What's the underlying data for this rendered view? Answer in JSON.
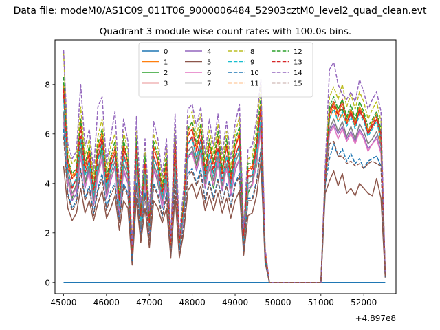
{
  "chart_data": {
    "type": "line",
    "suptitle": "Data file: modeM0/AS1C09_011T06_9000006484_52903cztM0_level2_quad_clean.evt",
    "title": "Quadrant 3 module wise count rates with 100.0s bins.",
    "xlabel": "",
    "ylabel": "",
    "x_offset_label": "+4.897e8",
    "xlim": [
      44800,
      52750
    ],
    "ylim": [
      -0.45,
      9.8
    ],
    "x_ticks": [
      45000,
      46000,
      47000,
      48000,
      49000,
      50000,
      51000,
      52000
    ],
    "y_ticks": [
      0,
      2,
      4,
      6,
      8
    ],
    "legend": {
      "placement": "top-center",
      "columns": 4
    },
    "grid": false,
    "x": [
      45000,
      45100,
      45200,
      45300,
      45400,
      45500,
      45600,
      45700,
      45800,
      45900,
      46000,
      46100,
      46200,
      46300,
      46400,
      46500,
      46600,
      46700,
      46800,
      46900,
      47000,
      47100,
      47200,
      47300,
      47400,
      47500,
      47600,
      47700,
      47800,
      47900,
      48000,
      48100,
      48200,
      48300,
      48400,
      48500,
      48600,
      48700,
      48800,
      48900,
      49000,
      49100,
      49200,
      49300,
      49400,
      49500,
      49600,
      49700,
      49800,
      49900,
      50000,
      51000,
      51100,
      51200,
      51300,
      51400,
      51500,
      51600,
      51700,
      51800,
      51900,
      52000,
      52100,
      52200,
      52300,
      52400,
      52500
    ],
    "series": [
      {
        "name": "0",
        "color": "#1f77b4",
        "dash": false,
        "values": [
          0,
          0,
          0,
          0,
          0,
          0,
          0,
          0,
          0,
          0,
          0,
          0,
          0,
          0,
          0,
          0,
          0,
          0,
          0,
          0,
          0,
          0,
          0,
          0,
          0,
          0,
          0,
          0,
          0,
          0,
          0,
          0,
          0,
          0,
          0,
          0,
          0,
          0,
          0,
          0,
          0,
          0,
          0,
          0,
          0,
          0,
          0,
          0,
          0,
          0,
          0,
          0,
          0,
          0,
          0,
          0,
          0,
          0,
          0,
          0,
          0,
          0,
          0,
          0,
          0,
          0,
          0
        ]
      },
      {
        "name": "1",
        "color": "#ff7f0e",
        "dash": false,
        "values": [
          7.9,
          4.8,
          4.2,
          4.5,
          6.6,
          4.6,
          5.3,
          3.7,
          5.4,
          6.0,
          4.0,
          5.0,
          5.3,
          3.2,
          5.6,
          4.8,
          1.3,
          5.5,
          2.7,
          4.8,
          2.4,
          5.5,
          4.9,
          3.6,
          4.9,
          1.5,
          5.7,
          1.6,
          3.2,
          6.0,
          6.2,
          5.4,
          6.2,
          4.4,
          5.6,
          4.8,
          5.8,
          4.4,
          5.5,
          4.2,
          5.4,
          6.0,
          1.9,
          4.6,
          4.6,
          5.6,
          7.2,
          1.2,
          0,
          0,
          0,
          0,
          4.0,
          6.6,
          7.1,
          6.5,
          6.8,
          6.4,
          6.9,
          6.3,
          7.0,
          6.6,
          6.0,
          6.3,
          6.6,
          5.6,
          0.3
        ]
      },
      {
        "name": "2",
        "color": "#2ca02c",
        "dash": false,
        "values": [
          8.1,
          4.1,
          3.4,
          4.0,
          5.8,
          3.9,
          4.8,
          3.1,
          4.4,
          5.6,
          3.5,
          4.2,
          4.7,
          2.9,
          4.8,
          4.3,
          1.1,
          4.8,
          2.2,
          4.1,
          2.0,
          4.7,
          4.0,
          3.1,
          4.1,
          1.3,
          4.9,
          1.5,
          2.8,
          5.1,
          5.3,
          4.7,
          5.4,
          4.0,
          4.6,
          3.8,
          4.8,
          3.8,
          4.7,
          3.6,
          4.5,
          5.0,
          1.6,
          3.6,
          4.0,
          4.7,
          6.4,
          1.1,
          0,
          0,
          0,
          0,
          4.2,
          7.0,
          7.3,
          6.9,
          7.0,
          6.6,
          7.0,
          6.5,
          7.1,
          6.8,
          6.1,
          6.5,
          6.8,
          6.0,
          0.3
        ]
      },
      {
        "name": "3",
        "color": "#d62728",
        "dash": false,
        "values": [
          7.6,
          4.6,
          3.8,
          4.2,
          5.9,
          4.4,
          5.0,
          3.4,
          5.0,
          5.8,
          3.8,
          4.7,
          5.2,
          3.1,
          5.2,
          4.5,
          1.2,
          5.2,
          2.4,
          4.5,
          2.2,
          5.1,
          4.6,
          3.4,
          4.5,
          1.4,
          5.3,
          1.5,
          3.0,
          5.6,
          5.9,
          5.0,
          5.8,
          4.2,
          5.2,
          4.4,
          5.4,
          4.1,
          5.1,
          4.0,
          5.1,
          5.6,
          1.7,
          4.3,
          4.3,
          5.4,
          7.0,
          1.2,
          0,
          0,
          0,
          0,
          4.2,
          6.8,
          7.3,
          6.8,
          7.4,
          6.5,
          6.8,
          6.4,
          6.9,
          6.6,
          6.0,
          6.3,
          6.6,
          5.8,
          0.3
        ]
      },
      {
        "name": "4",
        "color": "#9467bd",
        "dash": false,
        "values": [
          6.5,
          4.1,
          3.3,
          3.6,
          5.1,
          3.8,
          4.6,
          3.1,
          4.3,
          5.0,
          3.4,
          4.1,
          4.7,
          2.7,
          4.5,
          4.0,
          1.0,
          4.6,
          2.1,
          4.0,
          1.9,
          4.5,
          4.1,
          3.0,
          4.0,
          1.2,
          4.7,
          1.3,
          2.6,
          5.0,
          5.3,
          4.5,
          5.2,
          3.8,
          4.7,
          3.9,
          4.8,
          3.7,
          4.6,
          3.5,
          4.5,
          5.0,
          1.5,
          3.8,
          3.9,
          4.8,
          6.3,
          1.0,
          0,
          0,
          0,
          0,
          3.9,
          6.1,
          6.4,
          6.0,
          6.3,
          5.8,
          6.1,
          5.7,
          6.2,
          5.9,
          5.4,
          5.6,
          5.9,
          5.3,
          0.3
        ]
      },
      {
        "name": "5",
        "color": "#8c564b",
        "dash": false,
        "values": [
          4.7,
          3.0,
          2.5,
          2.8,
          3.8,
          2.8,
          3.3,
          2.5,
          3.2,
          3.7,
          2.6,
          3.0,
          3.5,
          2.1,
          3.3,
          3.0,
          0.7,
          3.4,
          1.6,
          3.0,
          1.4,
          3.3,
          3.0,
          2.4,
          3.0,
          1.0,
          3.5,
          1.0,
          2.0,
          3.7,
          4.0,
          3.4,
          3.9,
          2.9,
          3.5,
          2.9,
          3.6,
          2.8,
          3.4,
          2.6,
          3.3,
          3.7,
          1.1,
          2.7,
          2.8,
          3.5,
          4.9,
          0.8,
          0,
          0,
          0,
          0,
          3.6,
          4.1,
          4.5,
          3.9,
          4.4,
          3.6,
          3.8,
          3.5,
          4.0,
          3.8,
          3.6,
          3.5,
          4.2,
          3.4,
          0.2
        ]
      },
      {
        "name": "6",
        "color": "#e377c2",
        "dash": false,
        "values": [
          6.8,
          4.0,
          3.5,
          3.8,
          5.1,
          3.9,
          4.4,
          3.2,
          4.3,
          5.1,
          3.5,
          4.2,
          4.6,
          2.9,
          4.6,
          4.1,
          1.0,
          4.6,
          2.1,
          4.1,
          2.0,
          4.6,
          4.2,
          3.1,
          4.1,
          1.3,
          4.8,
          1.3,
          2.7,
          5.1,
          5.2,
          4.6,
          5.2,
          3.9,
          4.7,
          3.9,
          4.9,
          3.8,
          4.6,
          3.6,
          4.6,
          5.0,
          1.5,
          3.9,
          3.9,
          4.8,
          6.1,
          1.0,
          0,
          0,
          0,
          0,
          4.0,
          6.0,
          6.3,
          5.8,
          6.2,
          5.7,
          6.0,
          5.6,
          6.1,
          5.8,
          5.3,
          5.6,
          5.8,
          5.2,
          0.3
        ]
      },
      {
        "name": "7",
        "color": "#7f7f7f",
        "dash": false,
        "values": [
          6.9,
          4.3,
          3.6,
          3.9,
          5.4,
          4.1,
          4.7,
          3.3,
          4.6,
          5.3,
          3.6,
          4.4,
          4.9,
          3.0,
          4.8,
          4.3,
          1.1,
          4.8,
          2.2,
          4.3,
          2.1,
          4.8,
          4.3,
          3.3,
          4.3,
          1.3,
          5.0,
          1.4,
          2.8,
          5.3,
          5.5,
          4.8,
          5.5,
          4.0,
          4.9,
          4.1,
          5.1,
          3.9,
          4.8,
          3.8,
          4.8,
          5.3,
          1.6,
          4.0,
          4.1,
          5.0,
          6.5,
          1.1,
          0,
          0,
          0,
          0,
          4.1,
          6.2,
          6.6,
          6.1,
          6.5,
          5.9,
          6.3,
          5.8,
          6.4,
          6.1,
          5.6,
          5.8,
          6.1,
          5.5,
          0.3
        ]
      },
      {
        "name": "8",
        "color": "#bcbd22",
        "dash": true,
        "values": [
          9.3,
          5.3,
          4.8,
          5.0,
          7.1,
          5.1,
          5.8,
          4.2,
          5.9,
          6.6,
          4.5,
          5.5,
          6.0,
          3.6,
          6.1,
          5.3,
          1.4,
          6.1,
          3.0,
          5.4,
          2.7,
          6.0,
          5.4,
          4.0,
          5.4,
          1.7,
          6.3,
          1.8,
          3.5,
          6.6,
          6.9,
          5.9,
          6.8,
          4.9,
          6.2,
          5.2,
          6.4,
          4.9,
          6.1,
          4.6,
          6.0,
          6.7,
          2.1,
          5.0,
          5.1,
          6.2,
          8.0,
          1.3,
          0,
          0,
          0,
          0,
          4.5,
          7.5,
          7.9,
          7.4,
          8.0,
          7.1,
          7.6,
          7.0,
          7.7,
          7.3,
          6.6,
          7.0,
          7.3,
          6.5,
          0.3
        ]
      },
      {
        "name": "9",
        "color": "#17becf",
        "dash": true,
        "values": [
          7.4,
          4.5,
          3.9,
          4.2,
          5.8,
          4.3,
          4.9,
          3.5,
          4.9,
          5.6,
          3.8,
          4.6,
          5.1,
          3.1,
          5.1,
          4.5,
          1.2,
          5.1,
          2.5,
          4.5,
          2.3,
          5.0,
          4.6,
          3.4,
          4.5,
          1.4,
          5.3,
          1.5,
          2.9,
          5.6,
          5.8,
          5.0,
          5.7,
          4.2,
          5.2,
          4.3,
          5.3,
          4.1,
          5.1,
          3.9,
          5.0,
          5.5,
          1.7,
          4.2,
          4.3,
          5.2,
          6.7,
          1.1,
          0,
          0,
          0,
          0,
          4.3,
          6.6,
          7.0,
          6.5,
          6.9,
          6.3,
          6.7,
          6.2,
          6.8,
          6.5,
          5.9,
          6.2,
          6.5,
          5.8,
          0.3
        ]
      },
      {
        "name": "10",
        "color": "#1f77b4",
        "dash": true,
        "values": [
          6.2,
          3.6,
          3.0,
          3.3,
          4.6,
          3.4,
          3.9,
          2.8,
          3.8,
          4.4,
          3.0,
          3.7,
          4.0,
          2.5,
          4.0,
          3.6,
          0.9,
          4.0,
          1.9,
          3.6,
          1.7,
          4.0,
          3.6,
          2.7,
          3.6,
          1.1,
          4.2,
          1.2,
          2.3,
          4.4,
          4.6,
          4.0,
          4.6,
          3.3,
          4.1,
          3.4,
          4.2,
          3.2,
          4.0,
          3.1,
          4.0,
          4.4,
          1.3,
          3.4,
          3.4,
          4.1,
          5.4,
          0.9,
          0,
          0,
          0,
          0,
          3.9,
          5.0,
          5.6,
          5.1,
          5.4,
          4.9,
          5.2,
          4.8,
          5.0,
          4.6,
          4.9,
          5.0,
          5.1,
          4.7,
          0.2
        ]
      },
      {
        "name": "11",
        "color": "#ff7f0e",
        "dash": true,
        "values": [
          8.0,
          5.0,
          4.3,
          4.6,
          6.5,
          4.7,
          5.4,
          3.8,
          5.4,
          6.1,
          4.1,
          5.0,
          5.5,
          3.3,
          5.6,
          4.9,
          1.3,
          5.6,
          2.7,
          4.9,
          2.4,
          5.5,
          4.9,
          3.7,
          4.9,
          1.5,
          5.8,
          1.6,
          3.2,
          6.1,
          6.5,
          5.4,
          6.3,
          4.5,
          5.7,
          4.8,
          5.9,
          4.5,
          5.6,
          4.3,
          5.5,
          6.1,
          1.9,
          4.6,
          4.7,
          5.7,
          7.3,
          1.2,
          0,
          0,
          0,
          0,
          4.4,
          6.9,
          7.3,
          6.8,
          7.3,
          6.5,
          7.0,
          6.4,
          7.1,
          6.8,
          6.1,
          6.5,
          6.8,
          6.1,
          0.3
        ]
      },
      {
        "name": "12",
        "color": "#2ca02c",
        "dash": true,
        "values": [
          8.3,
          5.0,
          4.4,
          4.6,
          6.6,
          4.8,
          5.5,
          3.8,
          5.6,
          6.2,
          4.2,
          5.1,
          5.7,
          3.4,
          5.8,
          4.9,
          1.3,
          5.8,
          2.8,
          5.1,
          2.5,
          5.7,
          5.1,
          3.8,
          5.1,
          1.6,
          5.9,
          1.7,
          3.3,
          6.2,
          6.5,
          5.6,
          6.4,
          4.6,
          5.8,
          4.9,
          6.1,
          4.6,
          5.8,
          4.4,
          5.7,
          6.3,
          2.0,
          4.8,
          4.8,
          5.8,
          7.5,
          1.2,
          0,
          0,
          0,
          0,
          4.3,
          7.1,
          7.5,
          7.0,
          7.4,
          6.7,
          7.2,
          6.6,
          7.3,
          6.9,
          6.3,
          6.6,
          6.9,
          6.2,
          0.3
        ]
      },
      {
        "name": "13",
        "color": "#d62728",
        "dash": true,
        "values": [
          7.8,
          4.8,
          4.2,
          4.4,
          6.3,
          4.6,
          5.2,
          3.7,
          5.3,
          5.9,
          4.0,
          4.9,
          5.4,
          3.3,
          5.5,
          4.7,
          1.2,
          5.5,
          2.7,
          4.8,
          2.4,
          5.4,
          4.9,
          3.6,
          4.8,
          1.5,
          5.7,
          1.6,
          3.1,
          5.9,
          6.2,
          5.3,
          6.1,
          4.4,
          5.5,
          4.6,
          5.8,
          4.4,
          5.5,
          4.2,
          5.4,
          6.0,
          1.9,
          4.5,
          4.6,
          5.5,
          7.1,
          1.2,
          0,
          0,
          0,
          0,
          4.3,
          6.8,
          7.2,
          6.7,
          7.2,
          6.4,
          6.9,
          6.3,
          7.0,
          6.7,
          6.0,
          6.4,
          6.7,
          6.0,
          0.3
        ]
      },
      {
        "name": "14",
        "color": "#9467bd",
        "dash": true,
        "values": [
          9.4,
          5.6,
          5.0,
          5.3,
          8.0,
          5.5,
          6.2,
          4.5,
          7.1,
          7.5,
          4.8,
          5.9,
          6.9,
          3.9,
          6.6,
          5.7,
          1.5,
          6.7,
          3.2,
          5.8,
          2.9,
          6.5,
          5.8,
          4.3,
          5.8,
          1.8,
          6.8,
          1.9,
          3.8,
          7.0,
          7.2,
          6.3,
          7.1,
          5.2,
          6.6,
          5.5,
          6.8,
          5.2,
          6.5,
          5.0,
          6.4,
          7.2,
          2.2,
          5.4,
          5.5,
          6.6,
          8.2,
          1.4,
          0,
          0,
          0,
          0,
          4.7,
          8.6,
          8.9,
          8.0,
          7.6,
          7.4,
          7.7,
          7.3,
          8.2,
          7.7,
          7.0,
          7.4,
          7.7,
          6.9,
          0.3
        ]
      },
      {
        "name": "15",
        "color": "#8c564b",
        "dash": true,
        "values": [
          5.9,
          3.5,
          2.9,
          3.2,
          4.5,
          3.3,
          3.8,
          2.7,
          3.7,
          4.2,
          2.9,
          3.5,
          3.9,
          2.4,
          3.9,
          3.5,
          0.9,
          3.9,
          1.8,
          3.5,
          1.7,
          3.9,
          3.5,
          2.6,
          3.5,
          1.1,
          4.1,
          1.1,
          2.2,
          4.3,
          4.5,
          3.9,
          4.4,
          3.2,
          4.0,
          3.3,
          4.1,
          3.2,
          3.9,
          3.0,
          3.9,
          4.3,
          1.3,
          3.3,
          3.3,
          4.0,
          5.3,
          0.9,
          0,
          0,
          0,
          0,
          4.0,
          5.6,
          5.7,
          5.1,
          5.1,
          4.8,
          4.9,
          4.7,
          4.8,
          4.6,
          4.8,
          4.9,
          4.8,
          4.7,
          0.2
        ]
      }
    ]
  }
}
